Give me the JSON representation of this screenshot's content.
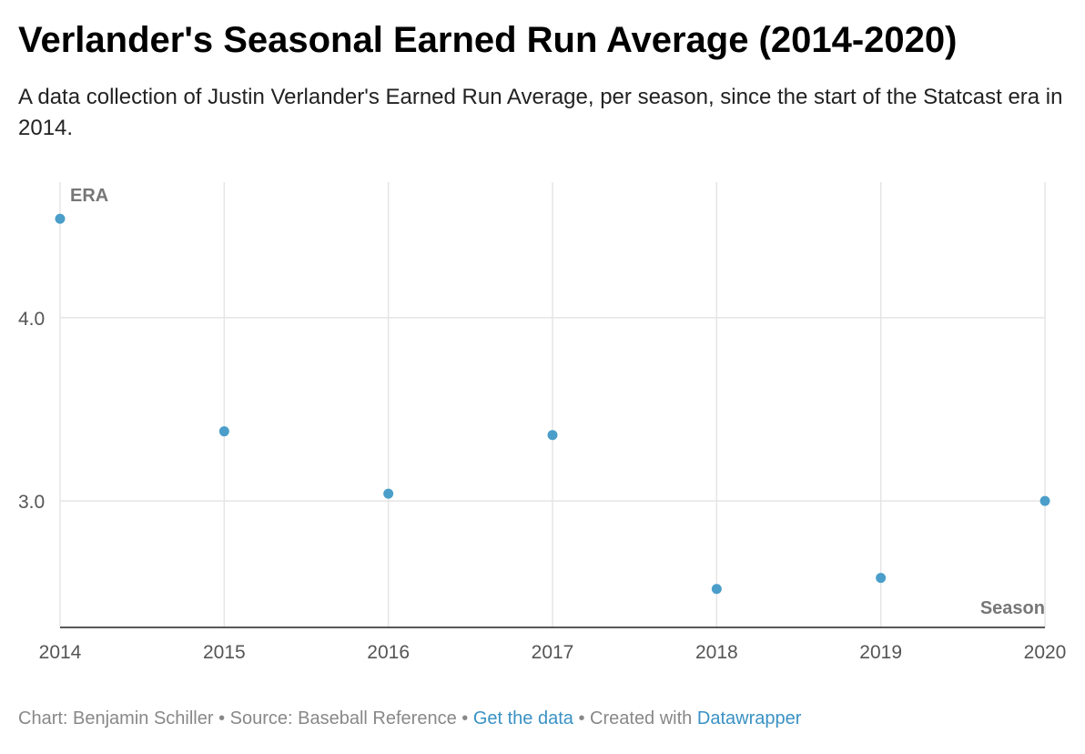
{
  "header": {
    "title": "Verlander's Seasonal Earned Run Average (2014-2020)",
    "subtitle": "A data collection of Justin Verlander's Earned Run Average, per season, since the start of the Statcast era in 2014."
  },
  "chart_data": {
    "type": "scatter",
    "xlabel": "Season",
    "ylabel": "ERA",
    "x": [
      2014,
      2015,
      2016,
      2017,
      2018,
      2019,
      2020
    ],
    "y": [
      4.54,
      3.38,
      3.04,
      3.36,
      2.52,
      2.58,
      3.0
    ],
    "x_ticks": [
      "2014",
      "2015",
      "2016",
      "2017",
      "2018",
      "2019",
      "2020"
    ],
    "y_ticks": [
      "4.0",
      "3.0"
    ],
    "xlim": [
      2014,
      2020
    ],
    "ylim": [
      2.31,
      4.74
    ],
    "grid": true,
    "point_color": "#4a9ec9",
    "grid_color": "#e5e5e5",
    "axis_color": "#222222"
  },
  "footer": {
    "credit": "Chart: Benjamin Schiller",
    "source": "Source: Baseball Reference",
    "separator": " • ",
    "get_data_label": "Get the data",
    "created_with": "Created with ",
    "datawrapper_label": "Datawrapper"
  }
}
